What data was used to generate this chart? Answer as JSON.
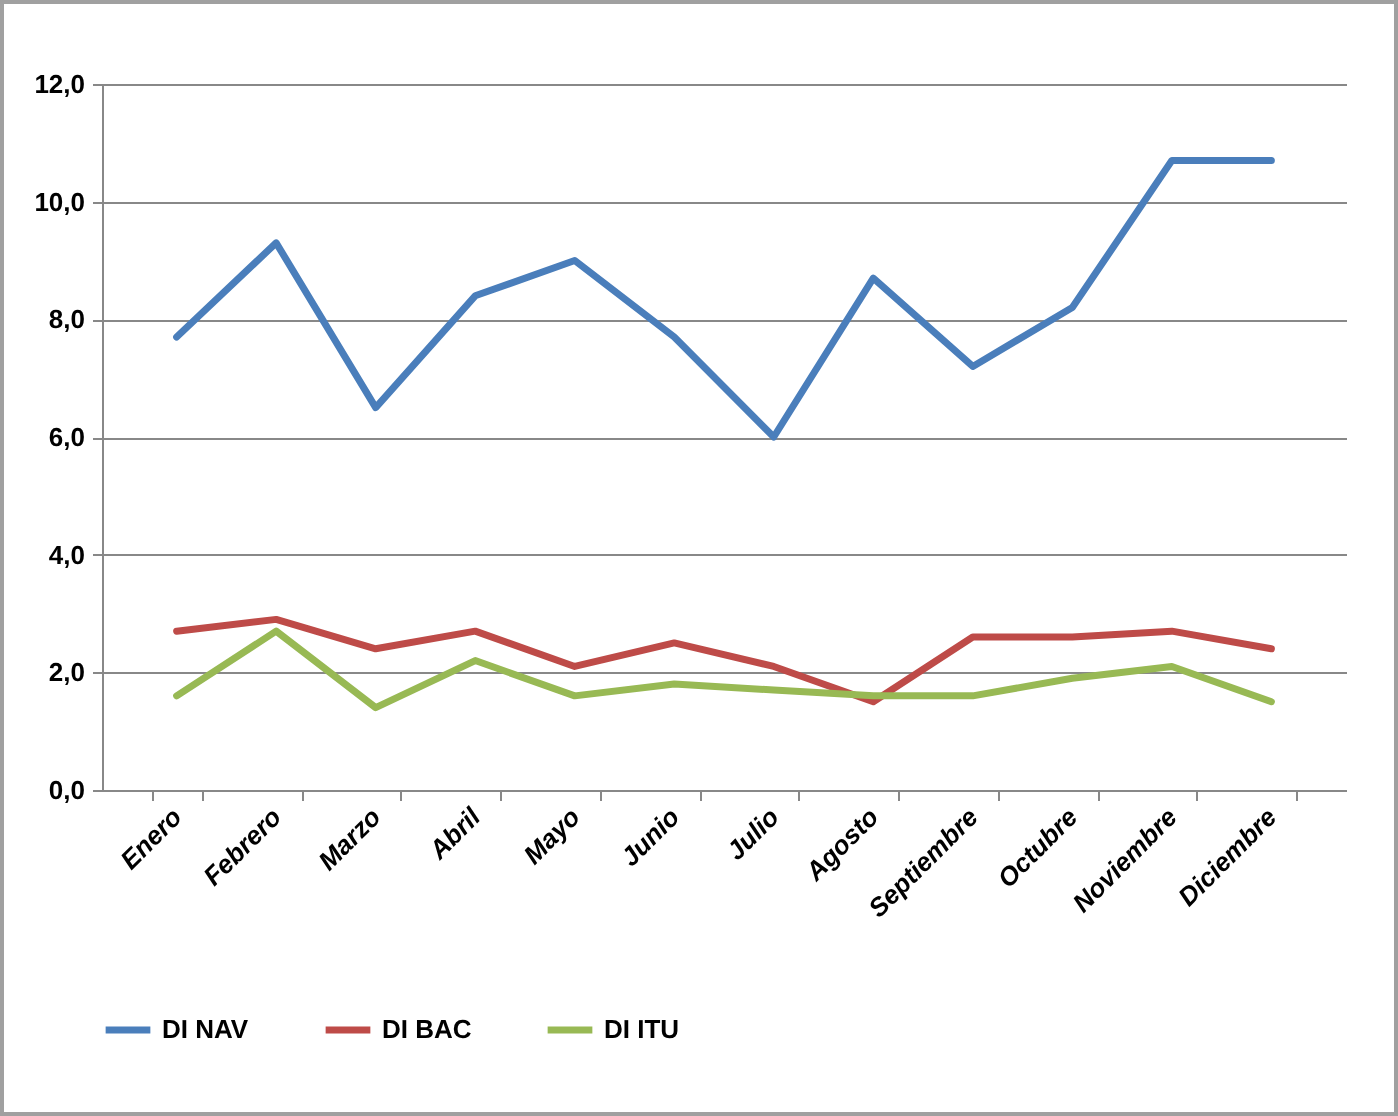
{
  "chart_data": {
    "type": "line",
    "categories": [
      "Enero",
      "Febrero",
      "Marzo",
      "Abril",
      "Mayo",
      "Junio",
      "Julio",
      "Agosto",
      "Septiembre",
      "Octubre",
      "Noviembre",
      "Diciembre"
    ],
    "series": [
      {
        "name": "DI NAV",
        "color": "#4a7ebb",
        "values": [
          7.7,
          9.3,
          6.5,
          8.4,
          9.0,
          7.7,
          6.0,
          8.7,
          7.2,
          8.2,
          10.7,
          10.7
        ]
      },
      {
        "name": "DI BAC",
        "color": "#be4b48",
        "values": [
          2.7,
          2.9,
          2.4,
          2.7,
          2.1,
          2.5,
          2.1,
          1.5,
          2.6,
          2.6,
          2.7,
          2.4
        ]
      },
      {
        "name": "DI ITU",
        "color": "#98b954",
        "values": [
          1.6,
          2.7,
          1.4,
          2.2,
          1.6,
          1.8,
          1.7,
          1.6,
          1.6,
          1.9,
          2.1,
          1.5
        ]
      }
    ],
    "ylim": [
      0,
      12
    ],
    "yticks": [
      {
        "value": 0,
        "label": "0,0"
      },
      {
        "value": 2,
        "label": "2,0"
      },
      {
        "value": 4,
        "label": "4,0"
      },
      {
        "value": 6,
        "label": "6,0"
      },
      {
        "value": 8,
        "label": "8,0"
      },
      {
        "value": 10,
        "label": "10,0"
      },
      {
        "value": 12,
        "label": "12,0"
      }
    ],
    "grid": "y",
    "legend": "bottom",
    "marker": "none",
    "line_style": "solid"
  }
}
